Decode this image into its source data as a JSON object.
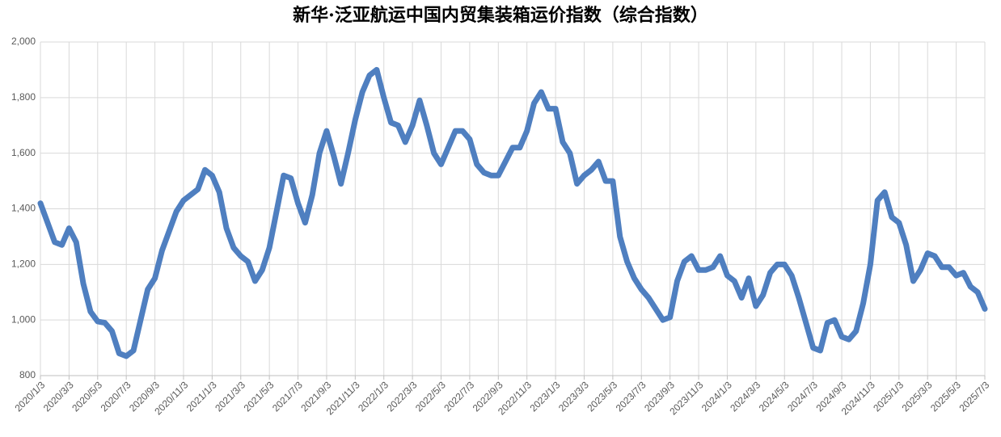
{
  "chart_data": {
    "type": "line",
    "title": "新华·泛亚航运中国内贸集装箱运价指数（综合指数）",
    "categories": [
      "2020/1/3",
      null,
      null,
      null,
      "2020/3/3",
      null,
      null,
      null,
      "2020/5/3",
      null,
      null,
      null,
      "2020/7/3",
      null,
      null,
      null,
      "2020/9/3",
      null,
      null,
      null,
      "2020/11/3",
      null,
      null,
      null,
      "2021/1/3",
      null,
      null,
      null,
      "2021/3/3",
      null,
      null,
      null,
      "2021/5/3",
      null,
      null,
      null,
      "2021/7/3",
      null,
      null,
      null,
      "2021/9/3",
      null,
      null,
      null,
      "2021/11/3",
      null,
      null,
      null,
      "2022/1/3",
      null,
      null,
      null,
      "2022/3/3",
      null,
      null,
      null,
      "2022/5/3",
      null,
      null,
      null,
      "2022/7/3",
      null,
      null,
      null,
      "2022/9/3",
      null,
      null,
      null,
      "2022/11/3",
      null,
      null,
      null,
      "2023/1/3",
      null,
      null,
      null,
      "2023/3/3",
      null,
      null,
      null,
      "2023/5/3",
      null,
      null,
      null,
      "2023/7/3",
      null,
      null,
      null,
      "2023/9/3",
      null,
      null,
      null,
      "2023/11/3",
      null,
      null,
      null,
      "2024/1/3",
      null,
      null,
      null,
      "2024/3/3",
      null,
      null,
      null,
      "2024/5/3",
      null,
      null,
      null,
      "2024/7/3",
      null,
      null,
      null,
      "2024/9/3",
      null,
      null,
      null,
      "2024/11/3",
      null,
      null,
      null,
      "2025/1/3",
      null,
      null,
      null,
      "2025/3/3",
      null,
      null,
      null,
      "2025/5/3",
      null,
      null,
      null,
      "2025/7/3"
    ],
    "values": [
      1420,
      1350,
      1280,
      1270,
      1330,
      1280,
      1130,
      1030,
      995,
      990,
      960,
      880,
      870,
      890,
      1000,
      1110,
      1150,
      1250,
      1320,
      1390,
      1430,
      1450,
      1470,
      1540,
      1520,
      1460,
      1330,
      1260,
      1230,
      1210,
      1140,
      1180,
      1260,
      1390,
      1520,
      1510,
      1420,
      1350,
      1450,
      1600,
      1680,
      1590,
      1490,
      1600,
      1720,
      1820,
      1880,
      1900,
      1800,
      1710,
      1700,
      1640,
      1700,
      1790,
      1700,
      1600,
      1560,
      1620,
      1680,
      1680,
      1650,
      1560,
      1530,
      1520,
      1520,
      1570,
      1620,
      1620,
      1680,
      1780,
      1820,
      1760,
      1760,
      1640,
      1600,
      1490,
      1520,
      1540,
      1570,
      1500,
      1500,
      1300,
      1210,
      1150,
      1110,
      1080,
      1040,
      1000,
      1010,
      1140,
      1210,
      1230,
      1180,
      1180,
      1190,
      1230,
      1160,
      1140,
      1080,
      1150,
      1050,
      1090,
      1170,
      1200,
      1200,
      1160,
      1080,
      990,
      900,
      890,
      990,
      1000,
      940,
      930,
      960,
      1060,
      1200,
      1430,
      1460,
      1370,
      1350,
      1270,
      1140,
      1180,
      1240,
      1230,
      1190,
      1190,
      1160,
      1170,
      1120,
      1100,
      1040
    ],
    "color": "#4f7fc0",
    "ylim": [
      800,
      2000
    ],
    "yticks": [
      800,
      {
        "value": 1000,
        "label": "1,000"
      },
      {
        "value": 1200,
        "label": "1,200"
      },
      {
        "value": 1400,
        "label": "1,400"
      },
      {
        "value": 1600,
        "label": "1,600"
      },
      {
        "value": 1800,
        "label": "1,800"
      },
      {
        "value": 2000,
        "label": "2,000"
      }
    ],
    "grid": true
  }
}
